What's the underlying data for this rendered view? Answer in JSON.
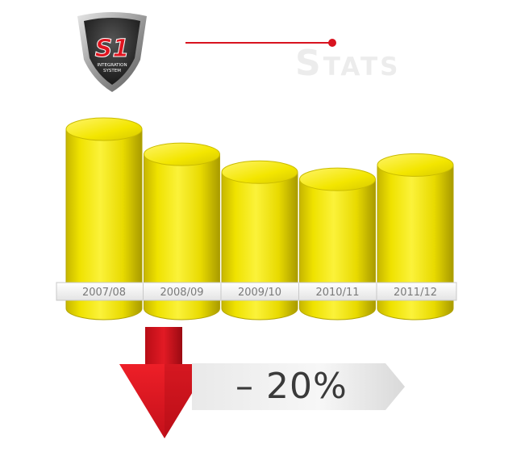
{
  "brand": {
    "logo_text": "S1",
    "logo_subtext_1": "INTEGRATION",
    "logo_subtext_2": "SYSTEM"
  },
  "title": "Stats",
  "colors": {
    "bar_fill": "#f0e400",
    "bar_shade": "#b8a700",
    "accent": "#d8131f",
    "arrow": "#e0141f"
  },
  "chart_data": {
    "type": "bar",
    "style": "3d-cylinder",
    "categories": [
      "2007/08",
      "2008/09",
      "2009/10",
      "2010/11",
      "2011/12"
    ],
    "values": [
      100,
      86,
      76,
      72,
      80
    ],
    "value_axis": "relative (no scale printed)",
    "grid": false,
    "legend": "none"
  },
  "change": {
    "direction": "down",
    "label": "– 20%"
  }
}
